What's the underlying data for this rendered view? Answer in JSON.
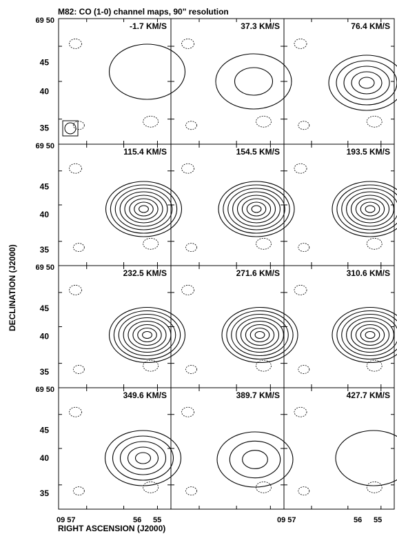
{
  "chart_data": {
    "type": "contour",
    "title": "M82: CO (1-0) channel maps, 90\" resolution",
    "xlabel": "RIGHT ASCENSION (J2000)",
    "ylabel": "DECLINATION (J2000)",
    "grid": false,
    "layout": {
      "rows": 4,
      "cols": 3
    },
    "x_ticks": {
      "labels": [
        "09 57",
        "56",
        "55"
      ]
    },
    "y_ticks": {
      "top_label": "69 50",
      "labels": [
        "45",
        "40",
        "35"
      ]
    },
    "beam": "circle in square, lower-left of first panel",
    "panels": [
      {
        "velocity": "-1.7 KM/S",
        "levels": 1
      },
      {
        "velocity": "37.3 KM/S",
        "levels": 2
      },
      {
        "velocity": "76.4 KM/S",
        "levels": 5
      },
      {
        "velocity": "115.4 KM/S",
        "levels": 8
      },
      {
        "velocity": "154.5 KM/S",
        "levels": 8
      },
      {
        "velocity": "193.5 KM/S",
        "levels": 8
      },
      {
        "velocity": "232.5 KM/S",
        "levels": 8
      },
      {
        "velocity": "271.6 KM/S",
        "levels": 8
      },
      {
        "velocity": "310.6 KM/S",
        "levels": 8
      },
      {
        "velocity": "349.6 KM/S",
        "levels": 5
      },
      {
        "velocity": "389.7 KM/S",
        "levels": 3
      },
      {
        "velocity": "427.7 KM/S",
        "levels": 1
      }
    ]
  }
}
